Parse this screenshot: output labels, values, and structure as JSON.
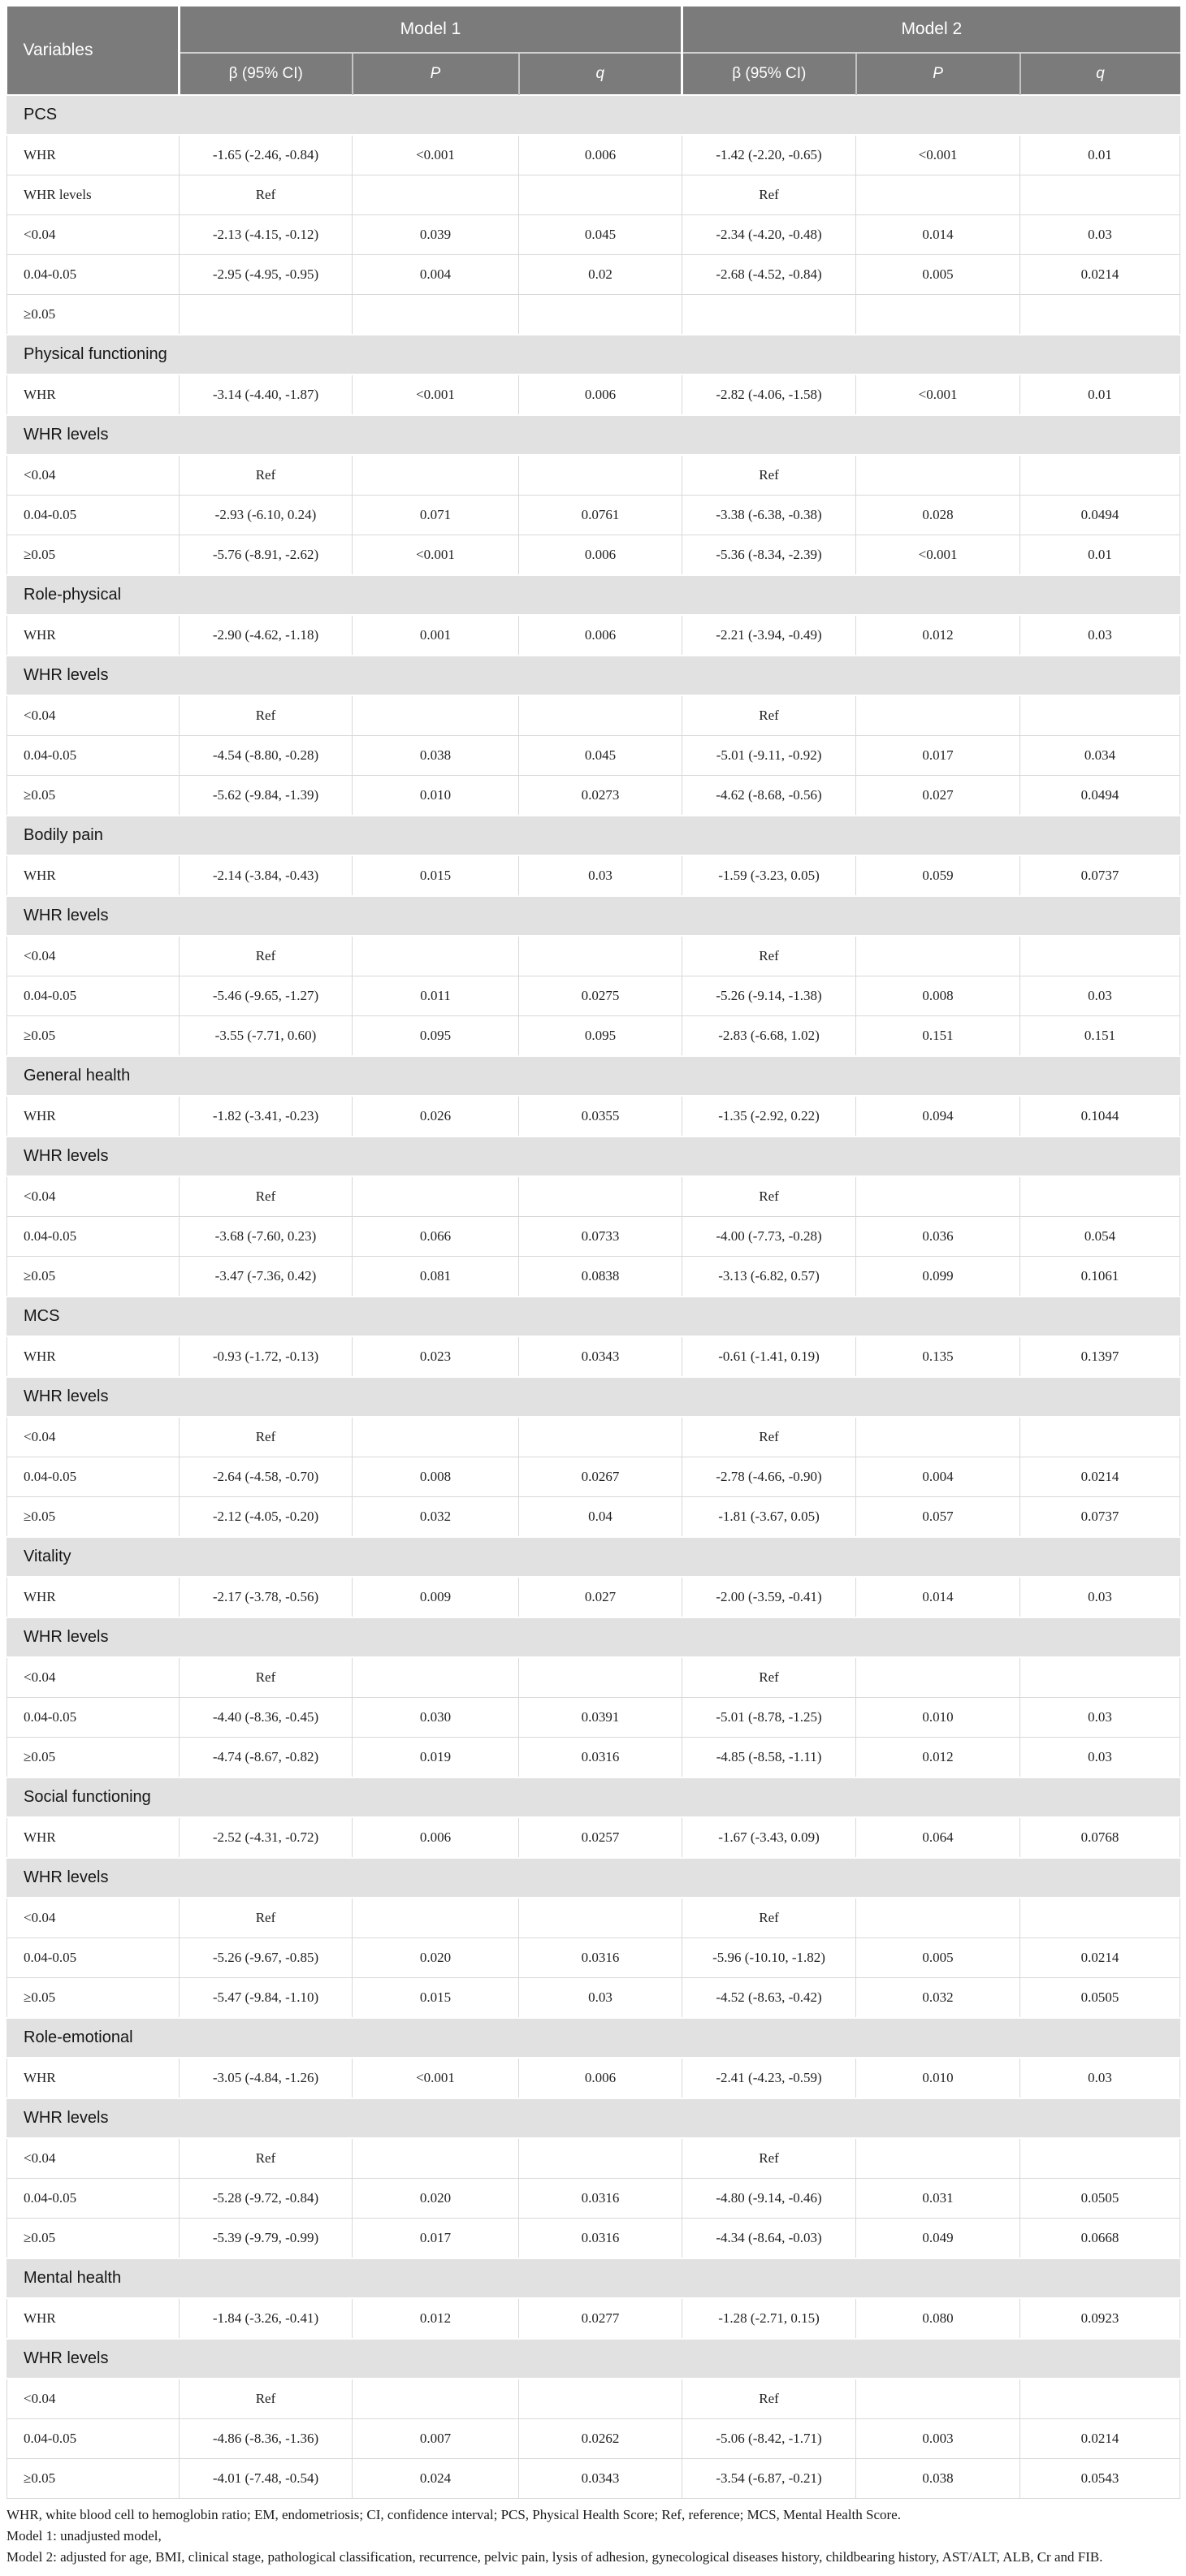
{
  "colors": {
    "header_bg": "#7b7b7b",
    "header_text": "#ffffff",
    "section_bg": "#e1e1e1",
    "row_bg": "#ffffff",
    "border": "#d8d8d8",
    "text": "#1f1f1f"
  },
  "header": {
    "variables_label": "Variables",
    "model1_label": "Model 1",
    "model2_label": "Model 2",
    "sub_columns": [
      {
        "label": "β (95% CI)",
        "italic": false
      },
      {
        "label": "P",
        "italic": true
      },
      {
        "label": "q",
        "italic": true
      }
    ]
  },
  "sections": [
    {
      "title": "PCS",
      "rows": [
        {
          "type": "data",
          "label": "WHR",
          "m1": [
            "-1.65 (-2.46, -0.84)",
            "<0.001",
            "0.006"
          ],
          "m2": [
            "-1.42 (-2.20, -0.65)",
            "<0.001",
            "0.01"
          ]
        },
        {
          "type": "data",
          "label": "WHR levels",
          "m1": [
            "Ref",
            "",
            ""
          ],
          "m2": [
            "Ref",
            "",
            ""
          ]
        },
        {
          "type": "data",
          "label": "<0.04",
          "m1": [
            "-2.13 (-4.15, -0.12)",
            "0.039",
            "0.045"
          ],
          "m2": [
            "-2.34 (-4.20, -0.48)",
            "0.014",
            "0.03"
          ]
        },
        {
          "type": "data",
          "label": "0.04-0.05",
          "m1": [
            "-2.95 (-4.95, -0.95)",
            "0.004",
            "0.02"
          ],
          "m2": [
            "-2.68 (-4.52, -0.84)",
            "0.005",
            "0.0214"
          ]
        },
        {
          "type": "data",
          "label": "≥0.05",
          "m1": [
            "",
            "",
            ""
          ],
          "m2": [
            "",
            "",
            ""
          ]
        }
      ]
    },
    {
      "title": "Physical functioning",
      "rows": [
        {
          "type": "data",
          "label": "WHR",
          "m1": [
            "-3.14 (-4.40, -1.87)",
            "<0.001",
            "0.006"
          ],
          "m2": [
            "-2.82 (-4.06, -1.58)",
            "<0.001",
            "0.01"
          ]
        },
        {
          "type": "subheader",
          "label": "WHR levels"
        },
        {
          "type": "data",
          "label": "<0.04",
          "m1": [
            "Ref",
            "",
            ""
          ],
          "m2": [
            "Ref",
            "",
            ""
          ]
        },
        {
          "type": "data",
          "label": "0.04-0.05",
          "m1": [
            "-2.93 (-6.10, 0.24)",
            "0.071",
            "0.0761"
          ],
          "m2": [
            "-3.38 (-6.38, -0.38)",
            "0.028",
            "0.0494"
          ]
        },
        {
          "type": "data",
          "label": "≥0.05",
          "m1": [
            "-5.76 (-8.91, -2.62)",
            "<0.001",
            "0.006"
          ],
          "m2": [
            "-5.36 (-8.34, -2.39)",
            "<0.001",
            "0.01"
          ]
        }
      ]
    },
    {
      "title": "Role-physical",
      "rows": [
        {
          "type": "data",
          "label": "WHR",
          "m1": [
            "-2.90 (-4.62, -1.18)",
            "0.001",
            "0.006"
          ],
          "m2": [
            "-2.21 (-3.94, -0.49)",
            "0.012",
            "0.03"
          ]
        },
        {
          "type": "subheader",
          "label": "WHR levels"
        },
        {
          "type": "data",
          "label": "<0.04",
          "m1": [
            "Ref",
            "",
            ""
          ],
          "m2": [
            "Ref",
            "",
            ""
          ]
        },
        {
          "type": "data",
          "label": "0.04-0.05",
          "m1": [
            "-4.54 (-8.80, -0.28)",
            "0.038",
            "0.045"
          ],
          "m2": [
            "-5.01 (-9.11, -0.92)",
            "0.017",
            "0.034"
          ]
        },
        {
          "type": "data",
          "label": "≥0.05",
          "m1": [
            "-5.62 (-9.84, -1.39)",
            "0.010",
            "0.0273"
          ],
          "m2": [
            "-4.62 (-8.68, -0.56)",
            "0.027",
            "0.0494"
          ]
        }
      ]
    },
    {
      "title": "Bodily pain",
      "rows": [
        {
          "type": "data",
          "label": "WHR",
          "m1": [
            "-2.14 (-3.84, -0.43)",
            "0.015",
            "0.03"
          ],
          "m2": [
            "-1.59 (-3.23, 0.05)",
            "0.059",
            "0.0737"
          ]
        },
        {
          "type": "subheader",
          "label": "WHR levels"
        },
        {
          "type": "data",
          "label": "<0.04",
          "m1": [
            "Ref",
            "",
            ""
          ],
          "m2": [
            "Ref",
            "",
            ""
          ]
        },
        {
          "type": "data",
          "label": "0.04-0.05",
          "m1": [
            "-5.46 (-9.65, -1.27)",
            "0.011",
            "0.0275"
          ],
          "m2": [
            "-5.26 (-9.14, -1.38)",
            "0.008",
            "0.03"
          ]
        },
        {
          "type": "data",
          "label": "≥0.05",
          "m1": [
            "-3.55 (-7.71, 0.60)",
            "0.095",
            "0.095"
          ],
          "m2": [
            "-2.83 (-6.68, 1.02)",
            "0.151",
            "0.151"
          ]
        }
      ]
    },
    {
      "title": "General health",
      "rows": [
        {
          "type": "data",
          "label": "WHR",
          "m1": [
            "-1.82 (-3.41, -0.23)",
            "0.026",
            "0.0355"
          ],
          "m2": [
            "-1.35 (-2.92, 0.22)",
            "0.094",
            "0.1044"
          ]
        },
        {
          "type": "subheader",
          "label": "WHR levels"
        },
        {
          "type": "data",
          "label": "<0.04",
          "m1": [
            "Ref",
            "",
            ""
          ],
          "m2": [
            "Ref",
            "",
            ""
          ]
        },
        {
          "type": "data",
          "label": "0.04-0.05",
          "m1": [
            "-3.68 (-7.60, 0.23)",
            "0.066",
            "0.0733"
          ],
          "m2": [
            "-4.00 (-7.73, -0.28)",
            "0.036",
            "0.054"
          ]
        },
        {
          "type": "data",
          "label": "≥0.05",
          "m1": [
            "-3.47 (-7.36, 0.42)",
            "0.081",
            "0.0838"
          ],
          "m2": [
            "-3.13 (-6.82, 0.57)",
            "0.099",
            "0.1061"
          ]
        }
      ]
    },
    {
      "title": "MCS",
      "rows": [
        {
          "type": "data",
          "label": "WHR",
          "m1": [
            "-0.93 (-1.72, -0.13)",
            "0.023",
            "0.0343"
          ],
          "m2": [
            "-0.61 (-1.41, 0.19)",
            "0.135",
            "0.1397"
          ]
        },
        {
          "type": "subheader",
          "label": "WHR levels"
        },
        {
          "type": "data",
          "label": "<0.04",
          "m1": [
            "Ref",
            "",
            ""
          ],
          "m2": [
            "Ref",
            "",
            ""
          ]
        },
        {
          "type": "data",
          "label": "0.04-0.05",
          "m1": [
            "-2.64 (-4.58, -0.70)",
            "0.008",
            "0.0267"
          ],
          "m2": [
            "-2.78 (-4.66, -0.90)",
            "0.004",
            "0.0214"
          ]
        },
        {
          "type": "data",
          "label": "≥0.05",
          "m1": [
            "-2.12 (-4.05, -0.20)",
            "0.032",
            "0.04"
          ],
          "m2": [
            "-1.81 (-3.67, 0.05)",
            "0.057",
            "0.0737"
          ]
        }
      ]
    },
    {
      "title": "Vitality",
      "rows": [
        {
          "type": "data",
          "label": "WHR",
          "m1": [
            "-2.17 (-3.78, -0.56)",
            "0.009",
            "0.027"
          ],
          "m2": [
            "-2.00 (-3.59, -0.41)",
            "0.014",
            "0.03"
          ]
        },
        {
          "type": "subheader",
          "label": "WHR levels"
        },
        {
          "type": "data",
          "label": "<0.04",
          "m1": [
            "Ref",
            "",
            ""
          ],
          "m2": [
            "Ref",
            "",
            ""
          ]
        },
        {
          "type": "data",
          "label": "0.04-0.05",
          "m1": [
            "-4.40 (-8.36, -0.45)",
            "0.030",
            "0.0391"
          ],
          "m2": [
            "-5.01 (-8.78, -1.25)",
            "0.010",
            "0.03"
          ]
        },
        {
          "type": "data",
          "label": "≥0.05",
          "m1": [
            "-4.74 (-8.67, -0.82)",
            "0.019",
            "0.0316"
          ],
          "m2": [
            "-4.85 (-8.58, -1.11)",
            "0.012",
            "0.03"
          ]
        }
      ]
    },
    {
      "title": "Social functioning",
      "rows": [
        {
          "type": "data",
          "label": "WHR",
          "m1": [
            "-2.52 (-4.31, -0.72)",
            "0.006",
            "0.0257"
          ],
          "m2": [
            "-1.67 (-3.43, 0.09)",
            "0.064",
            "0.0768"
          ]
        },
        {
          "type": "subheader",
          "label": "WHR levels"
        },
        {
          "type": "data",
          "label": "<0.04",
          "m1": [
            "Ref",
            "",
            ""
          ],
          "m2": [
            "Ref",
            "",
            ""
          ]
        },
        {
          "type": "data",
          "label": "0.04-0.05",
          "m1": [
            "-5.26 (-9.67, -0.85)",
            "0.020",
            "0.0316"
          ],
          "m2": [
            "-5.96 (-10.10, -1.82)",
            "0.005",
            "0.0214"
          ]
        },
        {
          "type": "data",
          "label": "≥0.05",
          "m1": [
            "-5.47 (-9.84, -1.10)",
            "0.015",
            "0.03"
          ],
          "m2": [
            "-4.52 (-8.63, -0.42)",
            "0.032",
            "0.0505"
          ]
        }
      ]
    },
    {
      "title": "Role-emotional",
      "rows": [
        {
          "type": "data",
          "label": "WHR",
          "m1": [
            "-3.05 (-4.84, -1.26)",
            "<0.001",
            "0.006"
          ],
          "m2": [
            "-2.41 (-4.23, -0.59)",
            "0.010",
            "0.03"
          ]
        },
        {
          "type": "subheader",
          "label": "WHR levels"
        },
        {
          "type": "data",
          "label": "<0.04",
          "m1": [
            "Ref",
            "",
            ""
          ],
          "m2": [
            "Ref",
            "",
            ""
          ]
        },
        {
          "type": "data",
          "label": "0.04-0.05",
          "m1": [
            "-5.28 (-9.72, -0.84)",
            "0.020",
            "0.0316"
          ],
          "m2": [
            "-4.80 (-9.14, -0.46)",
            "0.031",
            "0.0505"
          ]
        },
        {
          "type": "data",
          "label": "≥0.05",
          "m1": [
            "-5.39 (-9.79, -0.99)",
            "0.017",
            "0.0316"
          ],
          "m2": [
            "-4.34 (-8.64, -0.03)",
            "0.049",
            "0.0668"
          ]
        }
      ]
    },
    {
      "title": "Mental health",
      "rows": [
        {
          "type": "data",
          "label": "WHR",
          "m1": [
            "-1.84 (-3.26, -0.41)",
            "0.012",
            "0.0277"
          ],
          "m2": [
            "-1.28 (-2.71, 0.15)",
            "0.080",
            "0.0923"
          ]
        },
        {
          "type": "subheader",
          "label": "WHR levels"
        },
        {
          "type": "data",
          "label": "<0.04",
          "m1": [
            "Ref",
            "",
            ""
          ],
          "m2": [
            "Ref",
            "",
            ""
          ]
        },
        {
          "type": "data",
          "label": "0.04-0.05",
          "m1": [
            "-4.86 (-8.36, -1.36)",
            "0.007",
            "0.0262"
          ],
          "m2": [
            "-5.06 (-8.42, -1.71)",
            "0.003",
            "0.0214"
          ]
        },
        {
          "type": "data",
          "label": "≥0.05",
          "m1": [
            "-4.01 (-7.48, -0.54)",
            "0.024",
            "0.0343"
          ],
          "m2": [
            "-3.54 (-6.87, -0.21)",
            "0.038",
            "0.0543"
          ]
        }
      ]
    }
  ],
  "footnotes": [
    "WHR, white blood cell to hemoglobin ratio; EM, endometriosis; CI, confidence interval; PCS, Physical Health Score; Ref, reference; MCS, Mental Health Score.",
    "Model 1: unadjusted model,",
    "Model 2: adjusted for age, BMI, clinical stage, pathological classification, recurrence, pelvic pain, lysis of adhesion, gynecological diseases history, childbearing history, AST/ALT, ALB, Cr and FIB."
  ]
}
